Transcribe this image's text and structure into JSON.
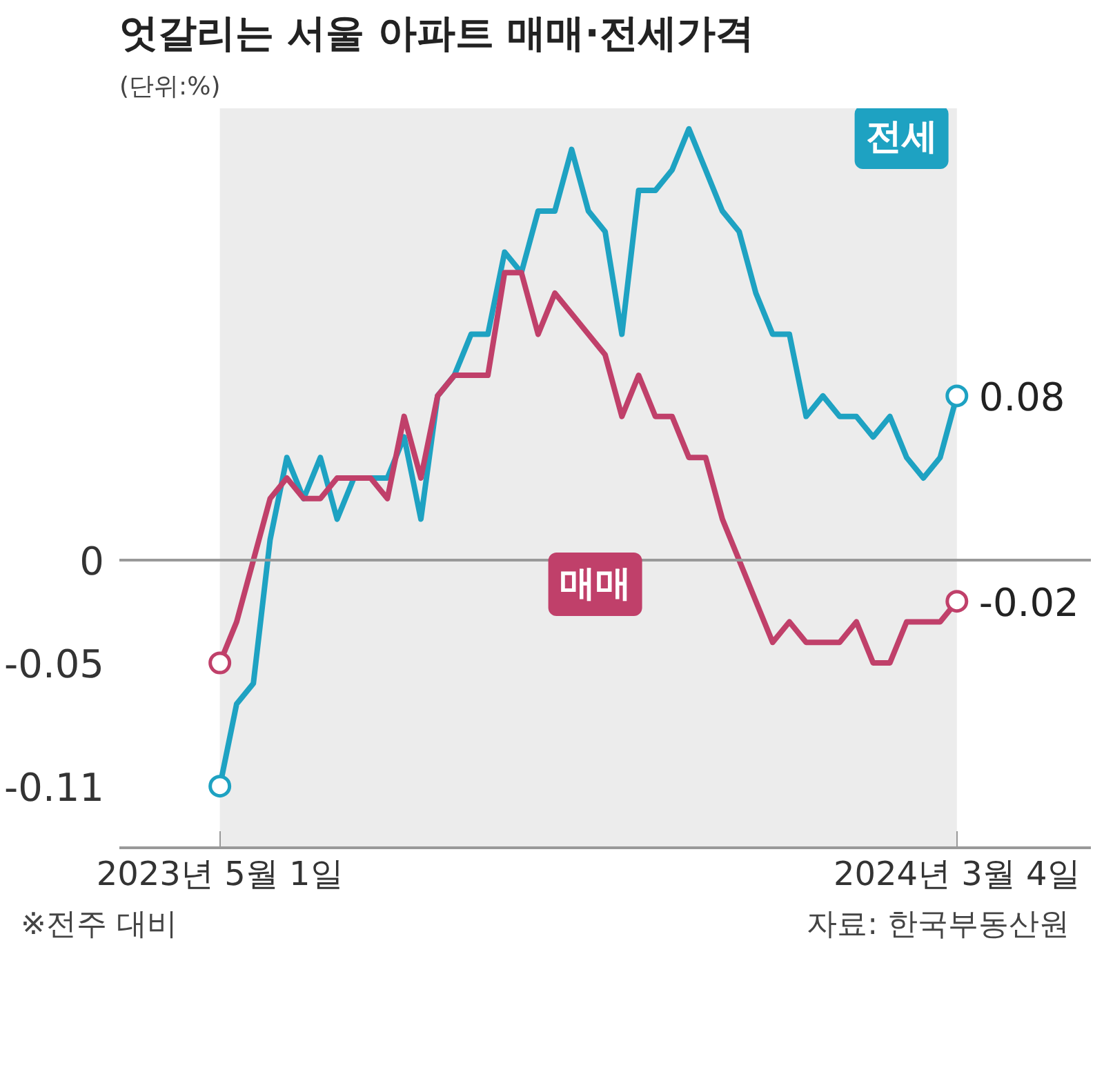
{
  "chart_data": {
    "type": "line",
    "title": "엇갈리는 서울 아파트 매매·전세가격",
    "subtitle": "(단위:%)",
    "annotations": [
      "※전주 대비",
      "자료: 한국부동산원"
    ],
    "x": [
      "2023-05-01",
      "2023-05-08",
      "2023-05-15",
      "2023-05-22",
      "2023-05-29",
      "2023-06-05",
      "2023-06-12",
      "2023-06-19",
      "2023-06-26",
      "2023-07-03",
      "2023-07-10",
      "2023-07-17",
      "2023-07-24",
      "2023-07-31",
      "2023-08-07",
      "2023-08-14",
      "2023-08-21",
      "2023-08-28",
      "2023-09-04",
      "2023-09-11",
      "2023-09-18",
      "2023-09-25",
      "2023-10-02",
      "2023-10-09",
      "2023-10-16",
      "2023-10-23",
      "2023-10-30",
      "2023-11-06",
      "2023-11-13",
      "2023-11-20",
      "2023-11-27",
      "2023-12-04",
      "2023-12-11",
      "2023-12-18",
      "2023-12-25",
      "2024-01-01",
      "2024-01-08",
      "2024-01-15",
      "2024-01-22",
      "2024-01-29",
      "2024-02-05",
      "2024-02-12",
      "2024-02-19",
      "2024-02-26",
      "2024-03-04"
    ],
    "series": [
      {
        "name": "전세",
        "color": "#1ea2c2",
        "values": [
          -0.11,
          -0.07,
          -0.06,
          0.01,
          0.05,
          0.03,
          0.05,
          0.02,
          0.04,
          0.04,
          0.04,
          0.06,
          0.02,
          0.08,
          0.09,
          0.11,
          0.11,
          0.15,
          0.14,
          0.17,
          0.17,
          0.2,
          0.17,
          0.16,
          0.11,
          0.18,
          0.18,
          0.19,
          0.21,
          0.19,
          0.17,
          0.16,
          0.13,
          0.11,
          0.11,
          0.07,
          0.08,
          0.07,
          0.07,
          0.06,
          0.07,
          0.05,
          0.04,
          0.05,
          0.08
        ],
        "value_labels": [
          null,
          null,
          null,
          null,
          null,
          null,
          null,
          null,
          null,
          null,
          null,
          null,
          null,
          null,
          null,
          null,
          null,
          null,
          null,
          null,
          null,
          null,
          null,
          null,
          null,
          null,
          null,
          null,
          null,
          null,
          null,
          null,
          null,
          null,
          null,
          null,
          null,
          null,
          null,
          null,
          null,
          null,
          null,
          null,
          "0.08"
        ]
      },
      {
        "name": "매매",
        "color": "#c0406a",
        "values": [
          -0.05,
          -0.03,
          0.0,
          0.03,
          0.04,
          0.03,
          0.03,
          0.04,
          0.04,
          0.04,
          0.03,
          0.07,
          0.04,
          0.08,
          0.09,
          0.09,
          0.09,
          0.14,
          0.14,
          0.11,
          0.13,
          0.12,
          0.11,
          0.1,
          0.07,
          0.09,
          0.07,
          0.07,
          0.05,
          0.05,
          0.02,
          0.0,
          -0.02,
          -0.04,
          -0.03,
          -0.04,
          -0.04,
          -0.04,
          -0.03,
          -0.05,
          -0.05,
          -0.03,
          -0.03,
          -0.03,
          -0.02
        ],
        "value_labels": [
          null,
          null,
          null,
          null,
          null,
          null,
          null,
          null,
          null,
          null,
          null,
          null,
          null,
          null,
          null,
          null,
          null,
          null,
          null,
          null,
          null,
          null,
          null,
          null,
          null,
          null,
          null,
          null,
          null,
          null,
          null,
          null,
          null,
          null,
          null,
          null,
          null,
          null,
          null,
          null,
          null,
          null,
          null,
          null,
          "-0.02"
        ]
      }
    ],
    "xlim": [
      "2023-03-20",
      "2024-04-29"
    ],
    "xticks": [
      {
        "value": "2023-05-01",
        "label": "2023년 5월 1일"
      },
      {
        "value": "2024-03-04",
        "label": "2024년 3월 4일"
      }
    ],
    "ylim": [
      -0.14,
      0.22
    ],
    "yticks": [
      -0.11,
      -0.05,
      0
    ],
    "ref_lines": [
      {
        "axis": "y",
        "value": 0,
        "color": "#999999"
      }
    ],
    "bands": [
      {
        "axis": "x",
        "from": "2023-05-01",
        "to": "2024-03-04",
        "color": "#ececec"
      }
    ],
    "grid": false,
    "legend": false,
    "line_style": "solid"
  }
}
